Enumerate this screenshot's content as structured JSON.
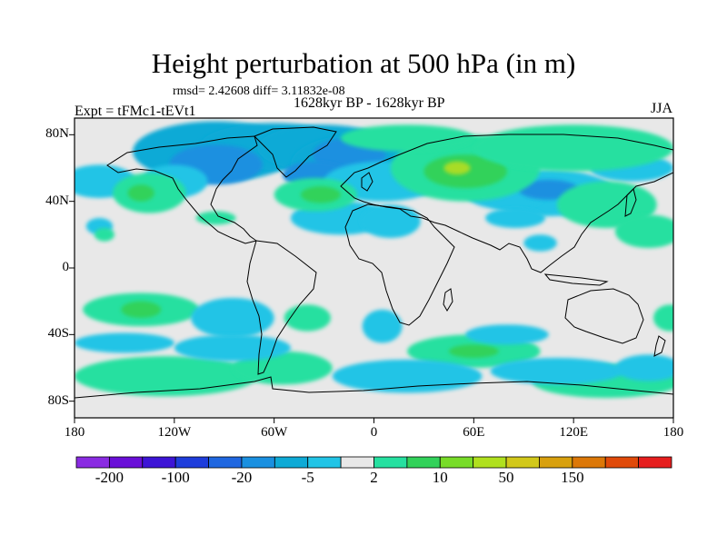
{
  "title": "Height perturbation at 500 hPa (in m)",
  "stats": "rmsd= 2.42608 diff= 3.11832e-08",
  "period": "1628kyr BP - 1628kyr BP",
  "expt": "Expt = tFMc1-tEVt1",
  "season": "JJA",
  "lat_labels": [
    {
      "lat": 80,
      "text": "80N"
    },
    {
      "lat": 40,
      "text": "40N"
    },
    {
      "lat": 0,
      "text": "0"
    },
    {
      "lat": -40,
      "text": "40S"
    },
    {
      "lat": -80,
      "text": "80S"
    }
  ],
  "lon_labels": [
    {
      "lon": -180,
      "text": "180"
    },
    {
      "lon": -120,
      "text": "120W"
    },
    {
      "lon": -60,
      "text": "60W"
    },
    {
      "lon": 0,
      "text": "0"
    },
    {
      "lon": 60,
      "text": "60E"
    },
    {
      "lon": 120,
      "text": "120E"
    },
    {
      "lon": 180,
      "text": "180"
    }
  ],
  "colorbar": {
    "colors": [
      "#8a2be2",
      "#6a0fd8",
      "#3d14d6",
      "#1e3ddb",
      "#1f67e0",
      "#1a90e0",
      "#0eaad6",
      "#22c4e6",
      "#e8e8e8",
      "#26e0a0",
      "#32d25a",
      "#78dc28",
      "#b0e01e",
      "#d2c81a",
      "#d8a00e",
      "#dc7808",
      "#e04a0a",
      "#e61e1e"
    ],
    "labels": [
      {
        "boundary": 1,
        "text": "-200"
      },
      {
        "boundary": 3,
        "text": "-100"
      },
      {
        "boundary": 5,
        "text": "-20"
      },
      {
        "boundary": 7,
        "text": "-5"
      },
      {
        "boundary": 9,
        "text": "2"
      },
      {
        "boundary": 11,
        "text": "10"
      },
      {
        "boundary": 13,
        "text": "50"
      },
      {
        "boundary": 15,
        "text": "150"
      }
    ]
  },
  "anomalies": [
    {
      "lon": -95,
      "lat": 70,
      "rx": 50,
      "ry": 18,
      "level": "blue"
    },
    {
      "lon": -60,
      "lat": 73,
      "rx": 45,
      "ry": 14,
      "level": "blue"
    },
    {
      "lon": -30,
      "lat": 72,
      "rx": 40,
      "ry": 14,
      "level": "blue"
    },
    {
      "lon": -10,
      "lat": 62,
      "rx": 40,
      "ry": 18,
      "level": "blue"
    },
    {
      "lon": -95,
      "lat": 62,
      "rx": 28,
      "ry": 12,
      "level": "midblue"
    },
    {
      "lon": -15,
      "lat": 68,
      "rx": 22,
      "ry": 10,
      "level": "midblue"
    },
    {
      "lon": -35,
      "lat": 56,
      "rx": 20,
      "ry": 8,
      "level": "midblue"
    },
    {
      "lon": -165,
      "lat": 52,
      "rx": 22,
      "ry": 10,
      "level": "cyan"
    },
    {
      "lon": -120,
      "lat": 52,
      "rx": 20,
      "ry": 10,
      "level": "cyan"
    },
    {
      "lon": 5,
      "lat": 52,
      "rx": 35,
      "ry": 12,
      "level": "cyan"
    },
    {
      "lon": -20,
      "lat": 30,
      "rx": 30,
      "ry": 10,
      "level": "cyan"
    },
    {
      "lon": 10,
      "lat": 28,
      "rx": 18,
      "ry": 10,
      "level": "cyan"
    },
    {
      "lon": 105,
      "lat": 45,
      "rx": 40,
      "ry": 14,
      "level": "cyan"
    },
    {
      "lon": 80,
      "lat": 45,
      "rx": 25,
      "ry": 10,
      "level": "cyan"
    },
    {
      "lon": 105,
      "lat": 47,
      "rx": 18,
      "ry": 6,
      "level": "midblue"
    },
    {
      "lon": 85,
      "lat": 30,
      "rx": 18,
      "ry": 6,
      "level": "cyan"
    },
    {
      "lon": 155,
      "lat": 60,
      "rx": 25,
      "ry": 8,
      "level": "cyan"
    },
    {
      "lon": -165,
      "lat": 25,
      "rx": 8,
      "ry": 5,
      "level": "cyan"
    },
    {
      "lon": -135,
      "lat": 45,
      "rx": 22,
      "ry": 12,
      "level": "green"
    },
    {
      "lon": -140,
      "lat": 45,
      "rx": 8,
      "ry": 5,
      "level": "lightgreen"
    },
    {
      "lon": -35,
      "lat": 44,
      "rx": 25,
      "ry": 10,
      "level": "green"
    },
    {
      "lon": -32,
      "lat": 44,
      "rx": 12,
      "ry": 5,
      "level": "lightgreen"
    },
    {
      "lon": 55,
      "lat": 60,
      "rx": 45,
      "ry": 20,
      "level": "green"
    },
    {
      "lon": 55,
      "lat": 58,
      "rx": 25,
      "ry": 10,
      "level": "lightgreen"
    },
    {
      "lon": 50,
      "lat": 60,
      "rx": 8,
      "ry": 4,
      "level": "yellowgreen"
    },
    {
      "lon": 20,
      "lat": 78,
      "rx": 40,
      "ry": 8,
      "level": "green"
    },
    {
      "lon": 120,
      "lat": 72,
      "rx": 60,
      "ry": 14,
      "level": "green"
    },
    {
      "lon": 140,
      "lat": 38,
      "rx": 30,
      "ry": 14,
      "level": "green"
    },
    {
      "lon": -95,
      "lat": 30,
      "rx": 12,
      "ry": 4,
      "level": "green"
    },
    {
      "lon": 165,
      "lat": 22,
      "rx": 20,
      "ry": 10,
      "level": "green"
    },
    {
      "lon": -162,
      "lat": 20,
      "rx": 6,
      "ry": 4,
      "level": "green"
    },
    {
      "lon": -140,
      "lat": -25,
      "rx": 35,
      "ry": 10,
      "level": "green"
    },
    {
      "lon": -140,
      "lat": -25,
      "rx": 12,
      "ry": 5,
      "level": "lightgreen"
    },
    {
      "lon": -40,
      "lat": -30,
      "rx": 14,
      "ry": 8,
      "level": "green"
    },
    {
      "lon": -125,
      "lat": -65,
      "rx": 55,
      "ry": 12,
      "level": "green"
    },
    {
      "lon": -55,
      "lat": -60,
      "rx": 30,
      "ry": 10,
      "level": "green"
    },
    {
      "lon": 60,
      "lat": -50,
      "rx": 40,
      "ry": 10,
      "level": "green"
    },
    {
      "lon": 60,
      "lat": -50,
      "rx": 15,
      "ry": 4,
      "level": "lightgreen"
    },
    {
      "lon": 140,
      "lat": -68,
      "rx": 45,
      "ry": 10,
      "level": "green"
    },
    {
      "lon": 178,
      "lat": -30,
      "rx": 10,
      "ry": 8,
      "level": "green"
    },
    {
      "lon": -85,
      "lat": -30,
      "rx": 25,
      "ry": 12,
      "level": "cyan"
    },
    {
      "lon": -85,
      "lat": -48,
      "rx": 35,
      "ry": 8,
      "level": "cyan"
    },
    {
      "lon": -150,
      "lat": -45,
      "rx": 30,
      "ry": 6,
      "level": "cyan"
    },
    {
      "lon": 5,
      "lat": -35,
      "rx": 12,
      "ry": 10,
      "level": "cyan"
    },
    {
      "lon": 20,
      "lat": -65,
      "rx": 45,
      "ry": 10,
      "level": "cyan"
    },
    {
      "lon": 110,
      "lat": -62,
      "rx": 40,
      "ry": 8,
      "level": "cyan"
    },
    {
      "lon": 80,
      "lat": -40,
      "rx": 25,
      "ry": 6,
      "level": "cyan"
    },
    {
      "lon": 165,
      "lat": -60,
      "rx": 20,
      "ry": 8,
      "level": "cyan"
    },
    {
      "lon": 100,
      "lat": 15,
      "rx": 10,
      "ry": 5,
      "level": "cyan"
    }
  ],
  "level_colors": {
    "midblue": "#1a90e0",
    "blue": "#0eaad6",
    "cyan": "#22c4e6",
    "green": "#26e0a0",
    "lightgreen": "#32d25a",
    "yellowgreen": "#a8dc28",
    "background": "#e8e8e8"
  }
}
